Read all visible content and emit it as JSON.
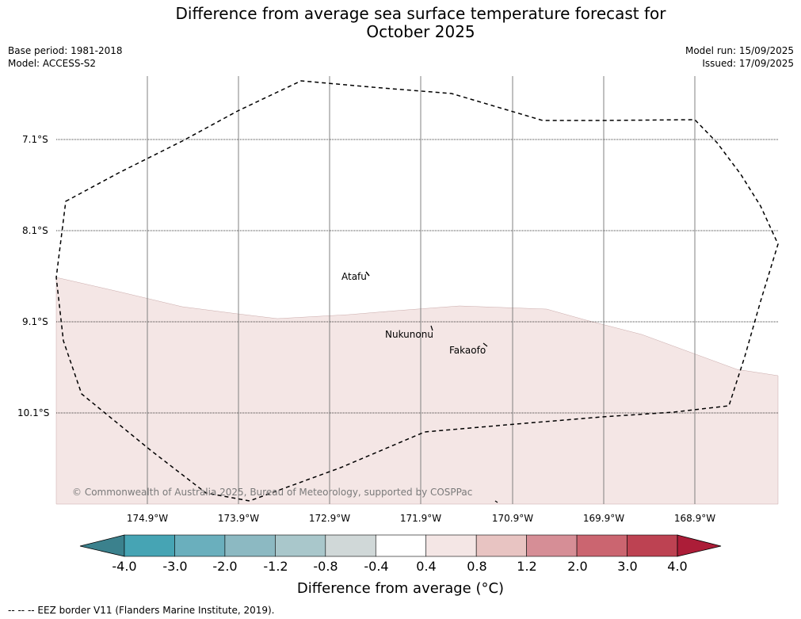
{
  "title_line1": "Difference from average sea surface temperature forecast for",
  "title_line2": "October 2025",
  "meta": {
    "base_period": "Base period: 1981-2018",
    "model": "Model: ACCESS-S2",
    "model_run": "Model run: 15/09/2025",
    "issued": "Issued: 17/09/2025"
  },
  "map": {
    "lat_labels": [
      "7.1°S",
      "8.1°S",
      "9.1°S",
      "10.1°S"
    ],
    "lon_labels": [
      "174.9°W",
      "173.9°W",
      "172.9°W",
      "171.9°W",
      "170.9°W",
      "169.9°W",
      "168.9°W"
    ],
    "places": [
      "Atafu",
      "Nukunonu",
      "Fakaofo"
    ],
    "copyright": "© Commonwealth of Australia 2025, Bureau of Meteorology, supported by COSPPac",
    "colors": {
      "anomaly_0_4_to_0_8": "#f4e6e5",
      "eez_border": "#000000",
      "gridline": "#808080"
    }
  },
  "colorbar": {
    "labels": [
      "-4.0",
      "-3.0",
      "-2.0",
      "-1.2",
      "-0.8",
      "-0.4",
      "0.4",
      "0.8",
      "1.2",
      "2.0",
      "3.0",
      "4.0"
    ],
    "colors": [
      "#3b818d",
      "#46a4b4",
      "#6aafbd",
      "#8cb9c2",
      "#a9c7cb",
      "#d0d8d8",
      "#ffffff",
      "#f4e6e5",
      "#e8c4c2",
      "#d68e96",
      "#cb6570",
      "#bd4252",
      "#ac1d38"
    ],
    "title": "Difference from average (°C)"
  },
  "footnote": "--  --  -- EEZ border V11 (Flanders Marine Institute, 2019)."
}
